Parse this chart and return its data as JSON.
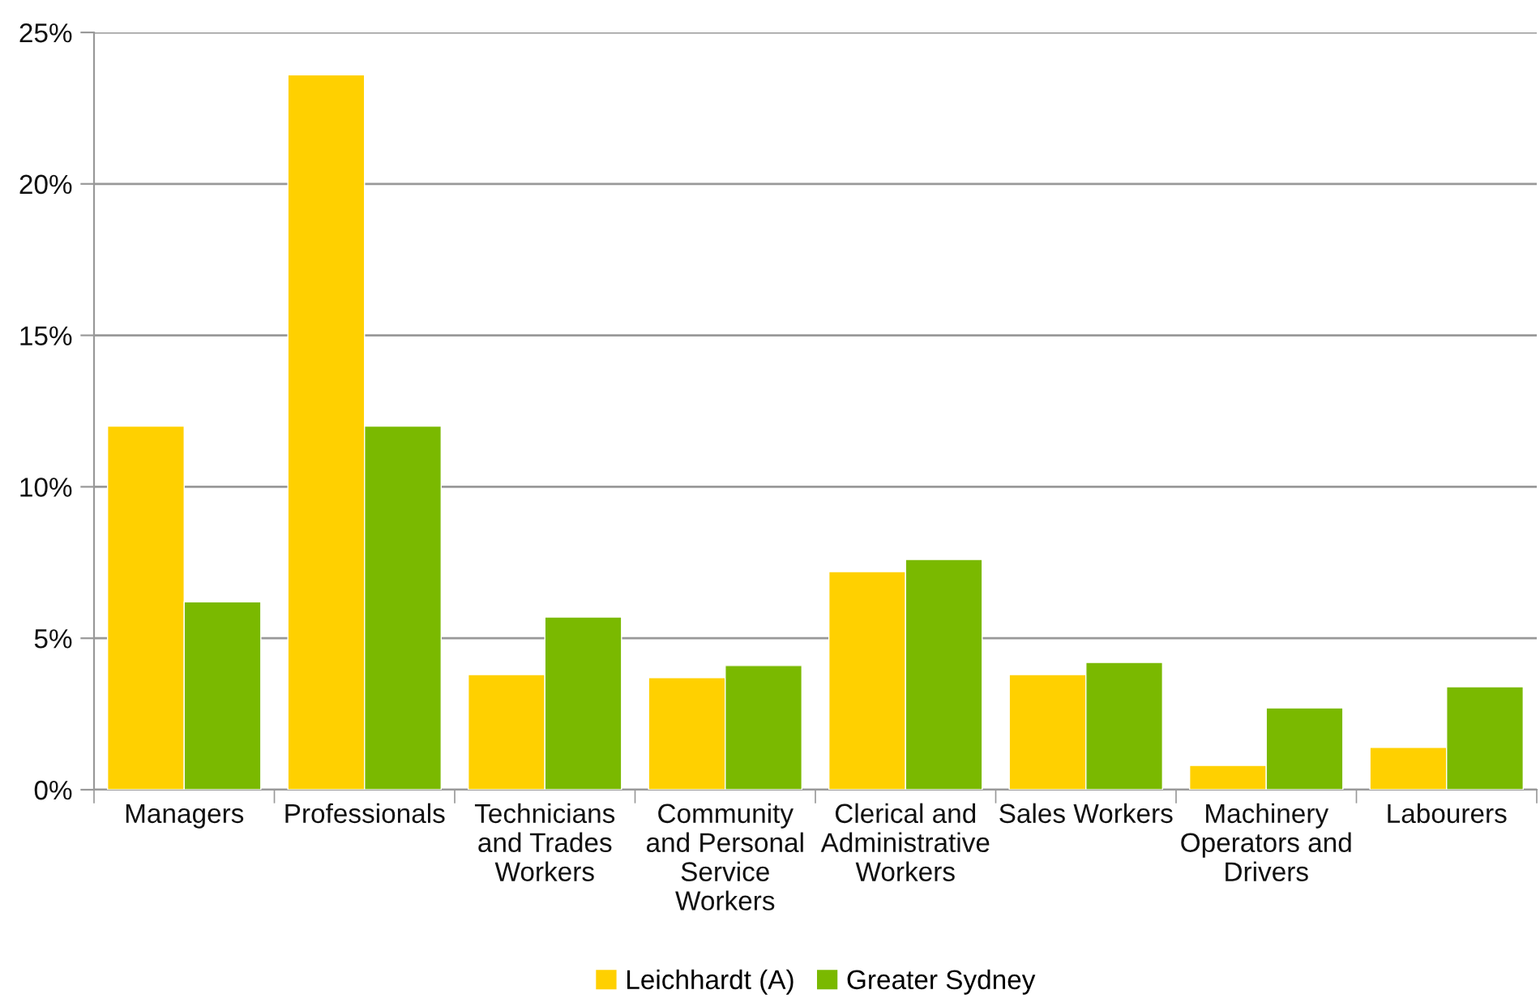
{
  "chart_data": {
    "type": "bar",
    "categories": [
      "Managers",
      "Professionals",
      "Technicians\nand Trades\nWorkers",
      "Community\nand Personal\nService\nWorkers",
      "Clerical and\nAdministrative\nWorkers",
      "Sales Workers",
      "Machinery\nOperators and\nDrivers",
      "Labourers"
    ],
    "series": [
      {
        "name": "Leichhardt (A)",
        "color": "#ffd000",
        "values": [
          12.0,
          23.6,
          3.8,
          3.7,
          7.2,
          3.8,
          0.8,
          1.4
        ]
      },
      {
        "name": "Greater Sydney",
        "color": "#7ab900",
        "values": [
          6.2,
          12.0,
          5.7,
          4.1,
          7.6,
          4.2,
          2.7,
          3.4
        ]
      }
    ],
    "ylim": [
      0,
      25
    ],
    "yticks": [
      {
        "value": 0,
        "label": "0%"
      },
      {
        "value": 5,
        "label": "5%"
      },
      {
        "value": 10,
        "label": "10%"
      },
      {
        "value": 15,
        "label": "15%"
      },
      {
        "value": 20,
        "label": "20%"
      },
      {
        "value": 25,
        "label": "25%"
      }
    ],
    "grid": "y",
    "legend": "bottom"
  }
}
